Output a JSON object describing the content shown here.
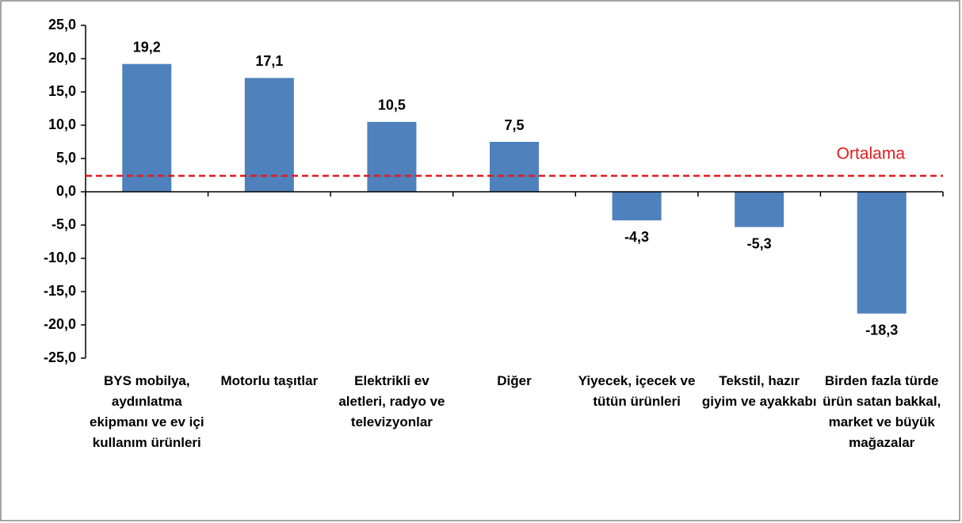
{
  "chart_data": {
    "type": "bar",
    "categories": [
      "BYS mobilya, aydınlatma ekipmanı ve ev içi kullanım ürünleri",
      "Motorlu taşıtlar",
      "Elektrikli ev aletleri, radyo ve televizyonlar",
      "Diğer",
      "Yiyecek, içecek ve tütün ürünleri",
      "Tekstil, hazır giyim ve ayakkabı",
      "Birden fazla türde ürün satan bakkal, market ve büyük mağazalar"
    ],
    "values": [
      19.2,
      17.1,
      10.5,
      7.5,
      -4.3,
      -5.3,
      -18.3
    ],
    "value_labels": [
      "19,2",
      "17,1",
      "10,5",
      "7,5",
      "-4,3",
      "-5,3",
      "-18,3"
    ],
    "color": "#4f81bd",
    "ylim": [
      -25,
      25
    ],
    "yticks": [
      {
        "value": -25,
        "label": "-25,0"
      },
      {
        "value": -20,
        "label": "-20,0"
      },
      {
        "value": -15,
        "label": "-15,0"
      },
      {
        "value": -10,
        "label": "-10,0"
      },
      {
        "value": -5,
        "label": "-5,0"
      },
      {
        "value": 0,
        "label": "0,0"
      },
      {
        "value": 5,
        "label": "5,0"
      },
      {
        "value": 10,
        "label": "10,0"
      },
      {
        "value": 15,
        "label": "15,0"
      },
      {
        "value": 20,
        "label": "20,0"
      },
      {
        "value": 25,
        "label": "25,0"
      }
    ],
    "reference_line": {
      "label": "Ortalama",
      "value": 2.4,
      "color": "#e31a1c"
    }
  }
}
